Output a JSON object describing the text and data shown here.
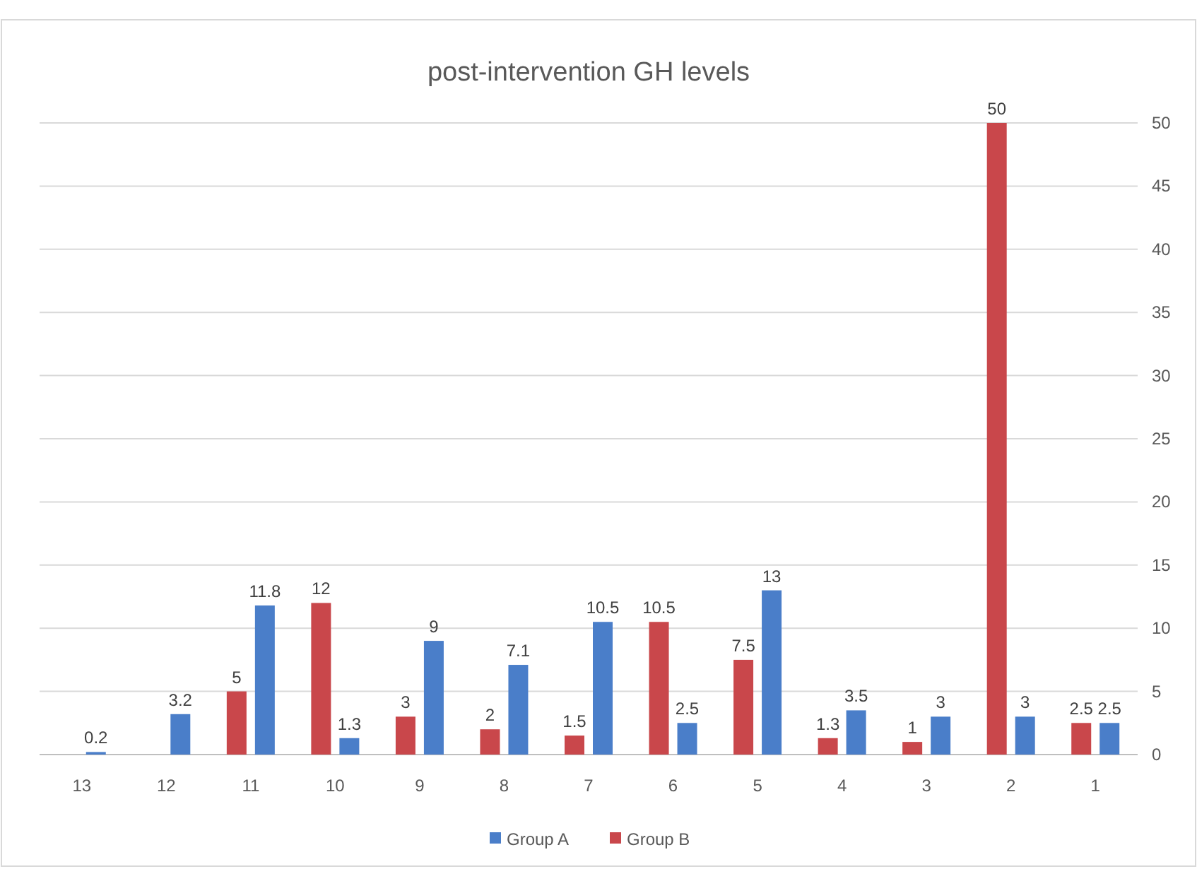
{
  "chart_data": {
    "type": "bar",
    "title": "post-intervention GH levels",
    "categories": [
      "13",
      "12",
      "11",
      "10",
      "9",
      "8",
      "7",
      "6",
      "5",
      "4",
      "3",
      "2",
      "1"
    ],
    "series": [
      {
        "name": "Group A",
        "color": "#4a7ec9",
        "values": [
          0.2,
          3.2,
          11.8,
          1.3,
          9,
          7.1,
          10.5,
          2.5,
          13,
          3.5,
          3,
          3,
          2.5
        ]
      },
      {
        "name": "Group B",
        "color": "#c9474b",
        "values": [
          null,
          null,
          5,
          12,
          3,
          2,
          1.5,
          10.5,
          7.5,
          1.3,
          1,
          50,
          2.5
        ]
      }
    ],
    "ylim": [
      0,
      50
    ],
    "yticks": [
      0,
      5,
      10,
      15,
      20,
      25,
      30,
      35,
      40,
      45,
      50
    ],
    "grid": "y",
    "data_labels": true,
    "legend": "bottom"
  }
}
